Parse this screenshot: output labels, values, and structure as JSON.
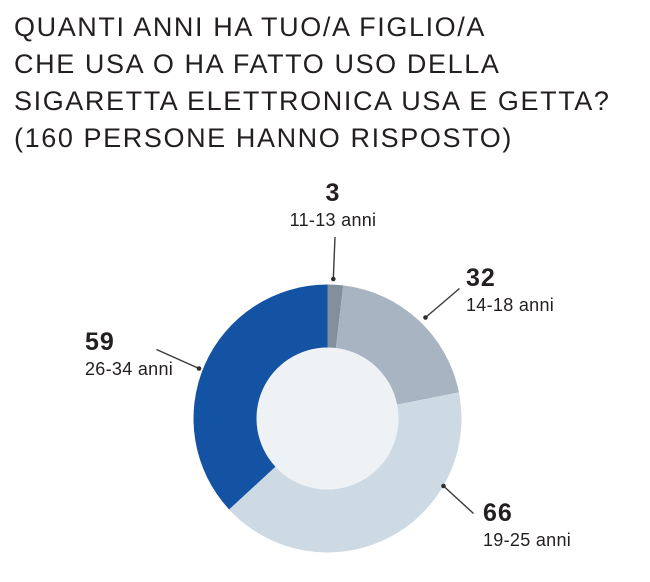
{
  "title": {
    "lines": [
      "QUANTI ANNI HA TUO/A FIGLIO/A",
      "CHE USA O HA FATTO USO DELLA",
      "SIGARETTA ELETTRONICA USA E GETTA?",
      "(160 PERSONE HANNO RISPOSTO)"
    ]
  },
  "chart_data": {
    "type": "pie",
    "style": "donut",
    "title": "QUANTI ANNI HA TUO/A FIGLIO/A CHE USA O HA FATTO USO DELLA SIGARETTA ELETTRONICA USA E GETTA? (160 PERSONE HANNO RISPOSTO)",
    "total_responses": 160,
    "direction": "clockwise",
    "start_angle_deg": 0,
    "categories": [
      "11-13 anni",
      "14-18 anni",
      "19-25 anni",
      "26-34 anni"
    ],
    "values": [
      3,
      32,
      66,
      59
    ],
    "colors": [
      "#82909d",
      "#a8b4c1",
      "#cedae3",
      "#1452a4"
    ],
    "hole_color": "#eff2f5",
    "text_color": "#231f20",
    "callout_color": "#3a3a3a",
    "legend_position": "callouts-around-donut",
    "grid": false
  }
}
